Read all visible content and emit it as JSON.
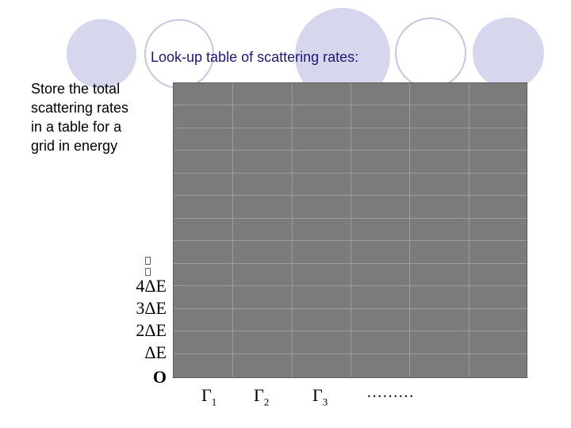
{
  "slide": {
    "title": "Look-up table of scattering rates:",
    "body_text": "Store the total\nscattering rates\nin a table for a\ngrid in energy",
    "colors": {
      "title_text": "#1a1a7a",
      "grid_fill": "#7b7b7b",
      "grid_line": "#9c9c9c",
      "circle_fill": "#d6d6ec",
      "circle_stroke": "#b8b8dc"
    },
    "y_axis_labels": [
      "4ΔE",
      "3ΔE",
      "2ΔE",
      "ΔE",
      "O"
    ],
    "x_axis_labels": [
      {
        "symbol": "Γ",
        "index": "1"
      },
      {
        "symbol": "Γ",
        "index": "2"
      },
      {
        "symbol": "Γ",
        "index": "3"
      },
      {
        "symbol": "………",
        "index": ""
      }
    ]
  }
}
